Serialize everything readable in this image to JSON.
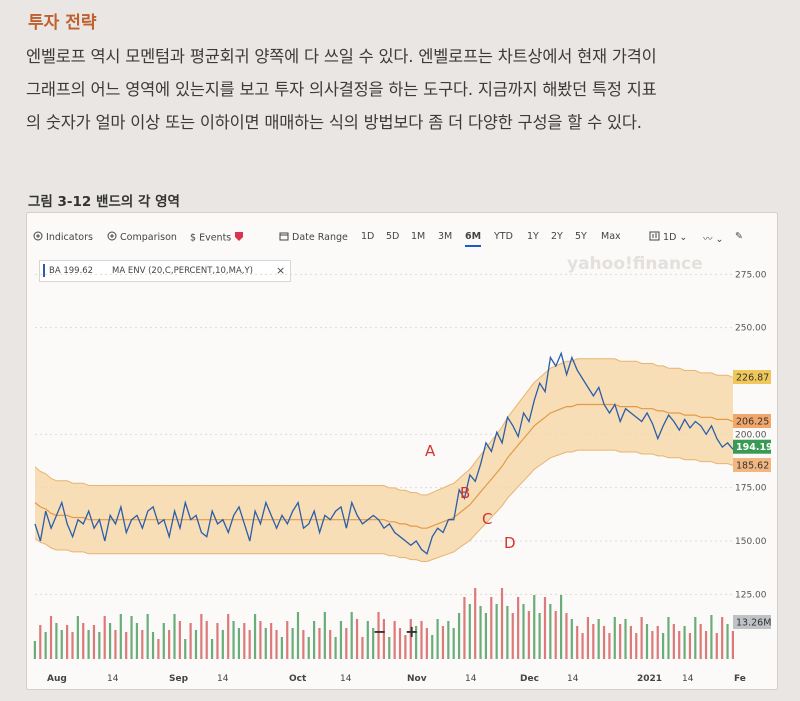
{
  "heading": "투자 전략",
  "paragraph_lines": [
    "엔벨로프 역시 모멘텀과 평균회귀 양쪽에 다 쓰일 수 있다. 엔벨로프는 차트상에서 현재 가격이",
    "그래프의 어느 영역에 있는지를 보고 투자 의사결정을 하는 도구다. 지금까지 해봤던 특정 지표",
    "의 숫자가 얼마 이상 또는 이하이면 매매하는 식의 방법보다 좀 더 다양한 구성을 할 수 있다."
  ],
  "figure_caption": "그림 3-12 밴드의 각 영역",
  "toolbar": {
    "indicators": "Indicators",
    "comparison": "Comparison",
    "events": "Events",
    "date_range": "Date Range",
    "ranges": [
      "1D",
      "5D",
      "1M",
      "3M",
      "6M",
      "YTD",
      "1Y",
      "2Y",
      "5Y",
      "Max"
    ],
    "active_range": "6M",
    "interval": "1D"
  },
  "legend": {
    "ticker": "BA 199.62",
    "indicator": "MA ENV (20,C,PERCENT,10,MA,Y)",
    "close": "×"
  },
  "watermark": "yahoo!finance",
  "chart_data": {
    "type": "line",
    "series": [
      {
        "values": [
          158,
          150,
          164,
          156,
          162,
          168,
          158,
          152,
          160,
          158,
          164,
          156,
          160,
          150,
          162,
          158,
          166,
          154,
          160,
          162,
          156,
          164,
          166,
          158,
          160,
          152,
          164,
          156,
          168,
          160,
          162,
          154,
          152,
          164,
          158,
          160,
          154,
          162,
          166,
          158,
          150,
          164,
          158,
          168,
          162,
          156,
          162,
          158,
          164,
          168,
          156,
          158,
          164,
          154,
          162,
          160,
          164,
          166,
          156,
          168,
          162,
          158,
          160,
          162,
          160,
          156,
          158,
          154,
          152,
          150,
          148,
          150,
          146,
          144,
          152,
          156,
          154,
          160,
          160,
          174,
          170,
          181,
          178,
          186,
          196,
          192,
          201,
          196,
          208,
          204,
          199,
          210,
          206,
          216,
          224,
          220,
          236,
          232,
          238,
          228,
          236,
          230,
          226,
          222,
          218,
          222,
          214,
          210,
          214,
          206,
          212,
          210,
          208,
          206,
          210,
          205,
          198,
          204,
          209,
          206,
          202,
          207,
          203,
          206,
          204,
          200,
          204,
          198,
          194,
          196,
          193
        ]
      },
      {
        "values": [
          168,
          166,
          165,
          163,
          162,
          162,
          162,
          161,
          161,
          161,
          160,
          160,
          160,
          160,
          160,
          160,
          160,
          160,
          160,
          160,
          160,
          160,
          160,
          160,
          160,
          160,
          160,
          160,
          160,
          160,
          160,
          160,
          160,
          160,
          160,
          160,
          160,
          160,
          160,
          160,
          160,
          160,
          160,
          160,
          160,
          160,
          160,
          160,
          160,
          160,
          160,
          160,
          160,
          160,
          160,
          160,
          160,
          160,
          160,
          160,
          160,
          160,
          160,
          160,
          160,
          160,
          159,
          159,
          158,
          158,
          157,
          157,
          156,
          156,
          157,
          158,
          159,
          160,
          161,
          163,
          165,
          167,
          170,
          173,
          176,
          179,
          182,
          185,
          189,
          192,
          195,
          198,
          201,
          204,
          206,
          208,
          210,
          211,
          212,
          213,
          213,
          214,
          214,
          214,
          214,
          214,
          214,
          214,
          214,
          213,
          213,
          213,
          213,
          212,
          212,
          212,
          211,
          211,
          210,
          210,
          210,
          209,
          209,
          209,
          208,
          208,
          208,
          207,
          207,
          207,
          206
        ]
      }
    ],
    "right_axis_ticks": [
      "275.00",
      "250.00",
      "200.00",
      "175.00",
      "150.00",
      "125.00"
    ],
    "price_tags": [
      "226.87",
      "206.25",
      "194.19",
      "185.62"
    ],
    "volume_tag": "13.26M",
    "x_labels": [
      "Aug",
      "14",
      "Sep",
      "14",
      "Oct",
      "14",
      "Nov",
      "14",
      "Dec",
      "14",
      "2021",
      "14",
      "Fe"
    ],
    "annotations": [
      "A",
      "B",
      "C",
      "D"
    ],
    "volume_markers": [
      "−",
      "+"
    ],
    "ylim": [
      120,
      285
    ]
  }
}
